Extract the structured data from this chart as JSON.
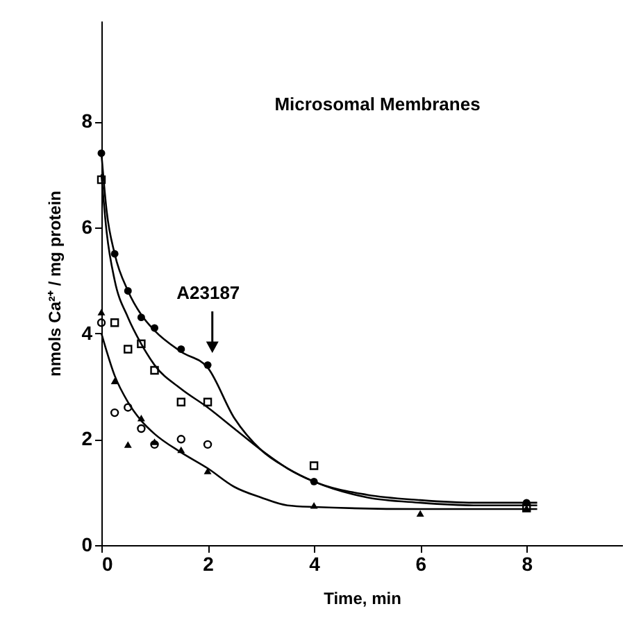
{
  "chart_data": {
    "type": "scatter",
    "xlabel": "Time, min",
    "ylabel": "nmols Ca²⁺ / mg protein",
    "xlim": [
      0,
      9.8
    ],
    "ylim": [
      0,
      9.9
    ],
    "xticks": [
      0,
      2,
      4,
      6,
      8
    ],
    "yticks": [
      0,
      2,
      4,
      6,
      8
    ],
    "grid": false,
    "annotations": [
      "Microsomal Membranes",
      "A23187"
    ],
    "series": [
      {
        "marker": "circle",
        "color": "#000000",
        "x": [
          0,
          0.25,
          0.5,
          0.75,
          1,
          1.5,
          2,
          4,
          8
        ],
        "values": [
          7.4,
          5.5,
          4.8,
          4.3,
          4.1,
          3.7,
          3.4,
          1.2,
          0.8
        ]
      },
      {
        "marker": "square",
        "color": "#000000",
        "x": [
          0,
          0.25,
          0.5,
          0.75,
          1,
          1.5,
          2,
          4,
          8
        ],
        "values": [
          6.9,
          4.2,
          3.7,
          3.8,
          3.3,
          2.7,
          2.7,
          1.5,
          0.7
        ]
      },
      {
        "marker": "circle",
        "color": "#000000",
        "x": [
          0,
          0.25,
          0.5,
          0.75,
          1,
          1.5,
          2
        ],
        "values": [
          4.2,
          2.5,
          2.6,
          2.2,
          1.9,
          2.0,
          1.9
        ]
      },
      {
        "marker": "triangle",
        "color": "#000000",
        "x": [
          0,
          0.25,
          0.5,
          0.75,
          1,
          1.5,
          2,
          4,
          6,
          8
        ],
        "values": [
          4.4,
          3.1,
          1.9,
          2.4,
          1.95,
          1.8,
          1.4,
          0.75,
          0.6,
          0.7
        ]
      },
      {
        "type": "line",
        "marker": "none",
        "line_style": "solid",
        "color": "#000000",
        "x": [
          0,
          0.1,
          0.25,
          0.5,
          0.75,
          1,
          1.5,
          2,
          2.5,
          3,
          3.5,
          4,
          5,
          6,
          7,
          8.2
        ],
        "values": [
          7.4,
          6.3,
          5.5,
          4.8,
          4.35,
          4.05,
          3.65,
          3.35,
          2.4,
          1.8,
          1.45,
          1.2,
          0.95,
          0.85,
          0.8,
          0.8
        ]
      },
      {
        "type": "line",
        "marker": "none",
        "line_style": "solid",
        "color": "#000000",
        "x": [
          0,
          0.1,
          0.25,
          0.5,
          0.75,
          1,
          1.5,
          2,
          2.5,
          3,
          3.5,
          4,
          5,
          6,
          7,
          8.2
        ],
        "values": [
          7.0,
          5.9,
          5.0,
          4.3,
          3.8,
          3.4,
          2.95,
          2.6,
          2.2,
          1.8,
          1.45,
          1.2,
          0.9,
          0.8,
          0.75,
          0.75
        ]
      },
      {
        "type": "line",
        "marker": "none",
        "line_style": "solid",
        "color": "#000000",
        "x": [
          0,
          0.25,
          0.5,
          0.75,
          1,
          1.5,
          2,
          2.5,
          3,
          3.5,
          4,
          6,
          8.2
        ],
        "values": [
          4.0,
          3.2,
          2.7,
          2.35,
          2.1,
          1.75,
          1.45,
          1.1,
          0.9,
          0.75,
          0.72,
          0.68,
          0.68
        ]
      }
    ]
  }
}
